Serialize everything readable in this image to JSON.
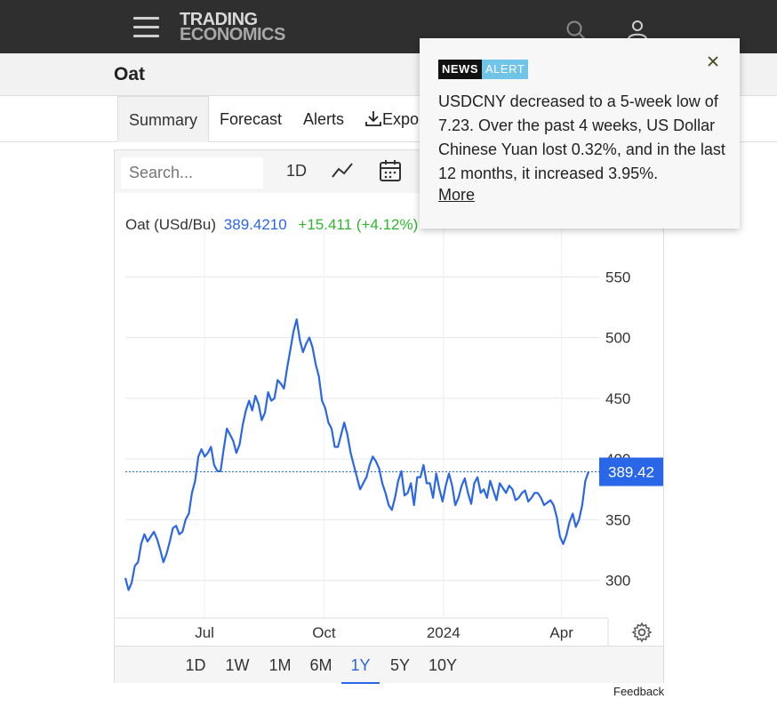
{
  "header": {
    "logo_line1": "TRADING",
    "logo_line2": "ECONOMICS",
    "icons": [
      "hamburger-icon",
      "search-icon",
      "user-icon"
    ]
  },
  "page": {
    "title": "Oat"
  },
  "tabs": [
    {
      "label": "Summary",
      "active": true
    },
    {
      "label": "Forecast"
    },
    {
      "label": "Alerts"
    },
    {
      "label": "Expo"
    }
  ],
  "chart_toolbar": {
    "search_placeholder": "Search...",
    "interval": "1D",
    "icons": [
      "line-chart-icon",
      "calendar-icon"
    ]
  },
  "chart_legend": {
    "name": "Oat (USd/Bu)",
    "price": "389.4210",
    "change": "+15.411 (+4.12%)"
  },
  "chart_data": {
    "type": "line",
    "title": "",
    "xlabel": "",
    "ylabel": "",
    "x_ticks": [
      "Jul",
      "Oct",
      "2024",
      "Apr"
    ],
    "y_ticks": [
      300,
      350,
      400,
      450,
      500,
      550
    ],
    "ylim": [
      250,
      575
    ],
    "last_value_label": "389.42",
    "last_value": 389.42,
    "grid": true,
    "series_color": "#2a66e8",
    "series": [
      {
        "name": "Oat (USd/Bu)",
        "values": [
          302,
          292,
          298,
          312,
          315,
          330,
          338,
          332,
          336,
          340,
          334,
          325,
          315,
          322,
          332,
          343,
          345,
          338,
          340,
          350,
          355,
          372,
          382,
          402,
          408,
          402,
          405,
          410,
          395,
          390,
          390,
          408,
          425,
          420,
          415,
          405,
          412,
          428,
          440,
          448,
          440,
          452,
          445,
          432,
          438,
          455,
          448,
          450,
          465,
          462,
          458,
          475,
          490,
          505,
          515,
          498,
          488,
          495,
          500,
          492,
          478,
          468,
          448,
          442,
          430,
          425,
          410,
          410,
          420,
          430,
          420,
          405,
          395,
          385,
          375,
          380,
          385,
          395,
          402,
          398,
          392,
          380,
          372,
          362,
          358,
          368,
          382,
          390,
          370,
          372,
          380,
          362,
          385,
          385,
          395,
          380,
          380,
          368,
          388,
          375,
          365,
          378,
          388,
          378,
          362,
          368,
          378,
          384,
          372,
          363,
          380,
          385,
          372,
          375,
          368,
          382,
          374,
          366,
          380,
          376,
          372,
          378,
          375,
          366,
          368,
          372,
          374,
          365,
          368,
          372,
          372,
          368,
          362,
          364,
          366,
          362,
          352,
          336,
          330,
          337,
          348,
          355,
          344,
          350,
          362,
          382,
          389.42
        ]
      }
    ],
    "x_start": "2023-05-01",
    "x_end": "2024-04-30"
  },
  "range_buttons": [
    {
      "label": "1D"
    },
    {
      "label": "1W"
    },
    {
      "label": "1M"
    },
    {
      "label": "6M"
    },
    {
      "label": "1Y",
      "active": true
    },
    {
      "label": "5Y"
    },
    {
      "label": "10Y"
    }
  ],
  "footer": {
    "feedback": "Feedback"
  },
  "news_popup": {
    "badge_news": "NEWS",
    "badge_alert": "ALERT",
    "text": "USDCNY decreased to a 5-week low of 7.23. Over the past 4 weeks, US Dollar Chinese Yuan lost 0.32%, and in the last 12 months, it increased 3.95%.",
    "more": "More"
  },
  "colors": {
    "accent": "#2a66e8",
    "positive": "#2fb52f",
    "topbar": "#2f2f2f"
  }
}
